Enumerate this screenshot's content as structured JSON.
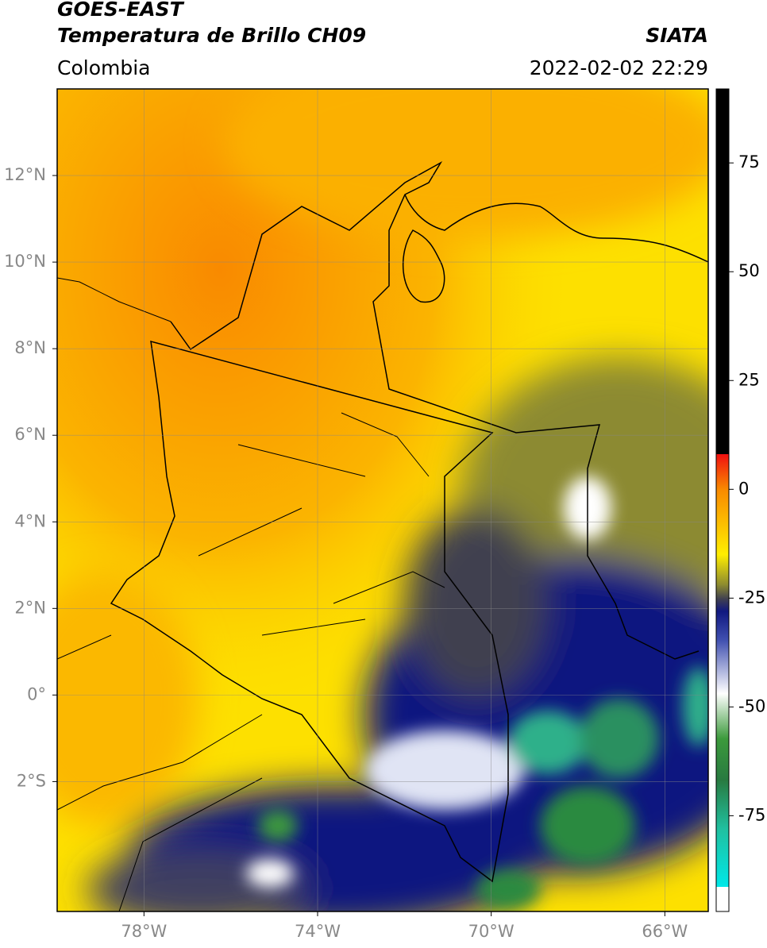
{
  "header": {
    "title": "GOES-EAST",
    "subtitle": "Temperatura de Brillo CH09",
    "organization": "SIATA",
    "region": "Colombia",
    "datetime": "2022-02-02 22:29"
  },
  "map": {
    "latlim": [
      -5,
      14
    ],
    "lonlim": [
      -80,
      -65
    ],
    "lat_ticks": [
      {
        "value": 12,
        "label": "12°N"
      },
      {
        "value": 10,
        "label": "10°N"
      },
      {
        "value": 8,
        "label": "8°N"
      },
      {
        "value": 6,
        "label": "6°N"
      },
      {
        "value": 4,
        "label": "4°N"
      },
      {
        "value": 2,
        "label": "2°N"
      },
      {
        "value": 0,
        "label": "0°"
      },
      {
        "value": -2,
        "label": "2°S"
      }
    ],
    "lon_ticks": [
      {
        "value": -78,
        "label": "78°W"
      },
      {
        "value": -74,
        "label": "74°W"
      },
      {
        "value": -70,
        "label": "70°W"
      },
      {
        "value": -66,
        "label": "66°W"
      }
    ]
  },
  "colorbar": {
    "lim": [
      -97,
      92
    ],
    "ticks": [
      75,
      50,
      25,
      0,
      -25,
      -50,
      -75
    ]
  }
}
